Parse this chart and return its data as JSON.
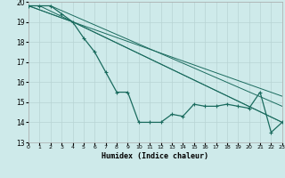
{
  "title": "",
  "xlabel": "Humidex (Indice chaleur)",
  "xlim": [
    0,
    23
  ],
  "ylim": [
    13,
    20
  ],
  "yticks": [
    13,
    14,
    15,
    16,
    17,
    18,
    19,
    20
  ],
  "xticks": [
    0,
    1,
    2,
    3,
    4,
    5,
    6,
    7,
    8,
    9,
    10,
    11,
    12,
    13,
    14,
    15,
    16,
    17,
    18,
    19,
    20,
    21,
    22,
    23
  ],
  "background_color": "#ceeaea",
  "grid_major_color": "#b8d4d4",
  "grid_minor_color": "#d6e8e8",
  "line_color": "#1a6b5e",
  "series_main": {
    "x": [
      0,
      1,
      2,
      3,
      4,
      5,
      6,
      7,
      8,
      9,
      10,
      11,
      12,
      13,
      14,
      15,
      16,
      17,
      18,
      19,
      20,
      21,
      22,
      23
    ],
    "y": [
      19.8,
      19.8,
      19.8,
      19.4,
      19.0,
      18.2,
      17.5,
      16.5,
      15.5,
      15.5,
      14.0,
      14.0,
      14.0,
      14.4,
      14.3,
      14.9,
      14.8,
      14.8,
      14.9,
      14.8,
      14.7,
      15.5,
      13.5,
      14.0
    ]
  },
  "trend_lines": [
    {
      "x": [
        0,
        1,
        23
      ],
      "y": [
        19.8,
        19.8,
        14.0
      ]
    },
    {
      "x": [
        0,
        2,
        23
      ],
      "y": [
        19.8,
        19.8,
        14.8
      ]
    },
    {
      "x": [
        0,
        4,
        23
      ],
      "y": [
        19.8,
        19.0,
        15.3
      ]
    },
    {
      "x": [
        0,
        4,
        23
      ],
      "y": [
        19.8,
        19.0,
        14.0
      ]
    }
  ]
}
